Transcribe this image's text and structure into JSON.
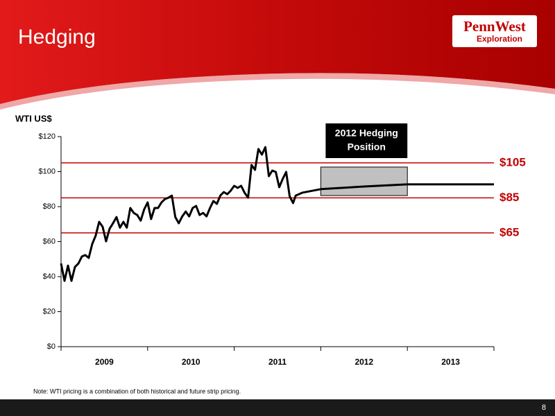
{
  "header": {
    "title": "Hedging",
    "logo": {
      "name": "PennWest",
      "sub": "Exploration"
    }
  },
  "chart_data": {
    "type": "line",
    "y_label": "WTI US$",
    "xlim": [
      2009,
      2014
    ],
    "xticks": [
      {
        "value": 2009.5,
        "label": "2009"
      },
      {
        "value": 2010.5,
        "label": "2010"
      },
      {
        "value": 2011.5,
        "label": "2011"
      },
      {
        "value": 2012.5,
        "label": "2012"
      },
      {
        "value": 2013.5,
        "label": "2013"
      }
    ],
    "ylim": [
      0,
      120
    ],
    "yticks": [
      {
        "value": 0,
        "label": "$0"
      },
      {
        "value": 20,
        "label": "$20"
      },
      {
        "value": 40,
        "label": "$40"
      },
      {
        "value": 60,
        "label": "$60"
      },
      {
        "value": 80,
        "label": "$80"
      },
      {
        "value": 100,
        "label": "$100"
      },
      {
        "value": 120,
        "label": "$120"
      }
    ],
    "x": [
      2009,
      2009.04,
      2009.08,
      2009.12,
      2009.16,
      2009.2,
      2009.24,
      2009.28,
      2009.32,
      2009.36,
      2009.4,
      2009.44,
      2009.48,
      2009.52,
      2009.56,
      2009.6,
      2009.64,
      2009.68,
      2009.72,
      2009.76,
      2009.8,
      2009.84,
      2009.88,
      2009.92,
      2009.96,
      2010,
      2010.04,
      2010.08,
      2010.12,
      2010.16,
      2010.2,
      2010.24,
      2010.28,
      2010.32,
      2010.36,
      2010.4,
      2010.44,
      2010.48,
      2010.52,
      2010.56,
      2010.6,
      2010.64,
      2010.68,
      2010.72,
      2010.76,
      2010.8,
      2010.84,
      2010.88,
      2010.92,
      2010.96,
      2011,
      2011.04,
      2011.08,
      2011.12,
      2011.16,
      2011.2,
      2011.24,
      2011.28,
      2011.32,
      2011.36,
      2011.4,
      2011.44,
      2011.48,
      2011.52,
      2011.56,
      2011.6,
      2011.64,
      2011.68,
      2011.71,
      2011.79,
      2012,
      2012.5,
      2013,
      2014
    ],
    "series": [
      {
        "color": "#000000",
        "values": [
          47.5,
          37.6,
          46.3,
          37.6,
          45.5,
          47.5,
          51.5,
          52.3,
          50.7,
          58.6,
          63.4,
          71.3,
          68.5,
          60.2,
          67.3,
          70.5,
          74,
          68,
          71.3,
          68,
          79.2,
          76.4,
          75.2,
          72,
          78.4,
          82.4,
          72.9,
          79.2,
          79.2,
          82.4,
          84.3,
          85.1,
          86.3,
          74,
          70.5,
          74.4,
          77.2,
          74.4,
          79.2,
          80.4,
          75.2,
          76.4,
          74.4,
          79.2,
          83.2,
          81.6,
          86.3,
          88.3,
          87.1,
          89.1,
          91.9,
          90.7,
          91.9,
          87.9,
          85.1,
          103.8,
          101,
          112.9,
          109.7,
          114,
          97.4,
          100.6,
          99.8,
          91.1,
          95.8,
          99.8,
          85.9,
          82,
          86.3,
          88,
          90,
          91.5,
          92.7,
          92.7
        ]
      }
    ],
    "ref_lines": {
      "color": "#c00000",
      "lines": [
        {
          "value": 105,
          "label": "$105"
        },
        {
          "value": 85,
          "label": "$85"
        },
        {
          "value": 65,
          "label": "$65"
        }
      ]
    },
    "hedge_box": {
      "lines": [
        "2012 Hedging",
        "Position"
      ],
      "x": [
        2012,
        2013
      ],
      "range": [
        86.3,
        102.6
      ],
      "color": "#c0c0c0"
    }
  },
  "footer": {
    "note": "Note: WTI pricing is a combination of both historical and future strip pricing.",
    "page": "8"
  }
}
